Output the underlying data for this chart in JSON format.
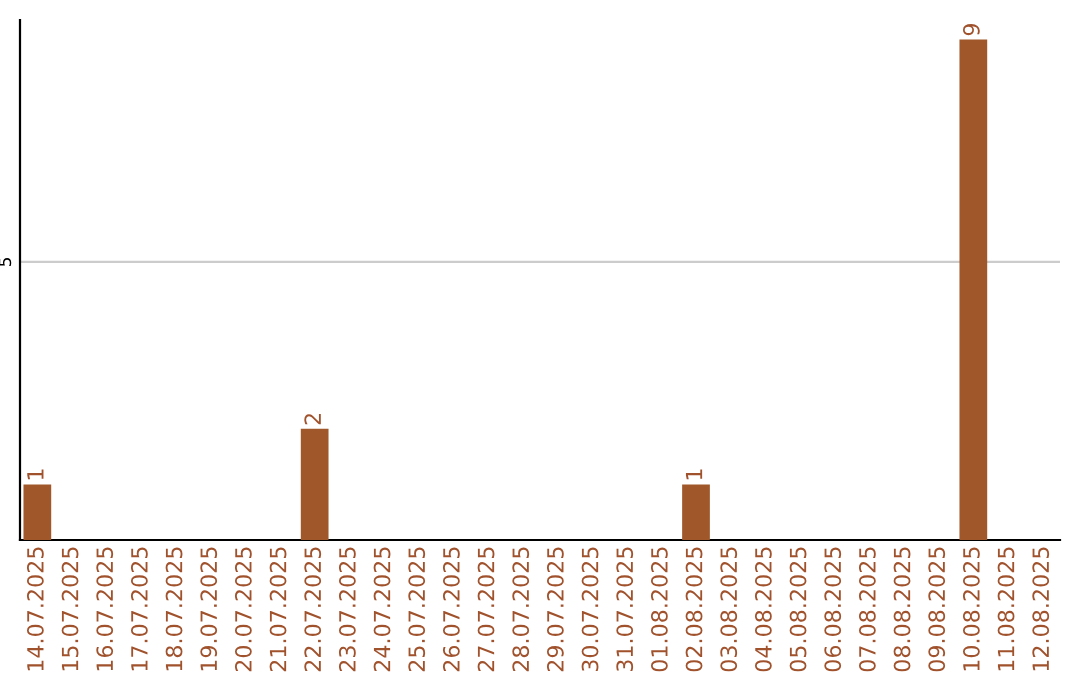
{
  "chart_data": {
    "type": "bar",
    "categories": [
      "14.07.2025",
      "15.07.2025",
      "16.07.2025",
      "17.07.2025",
      "18.07.2025",
      "19.07.2025",
      "20.07.2025",
      "21.07.2025",
      "22.07.2025",
      "23.07.2025",
      "24.07.2025",
      "25.07.2025",
      "26.07.2025",
      "27.07.2025",
      "28.07.2025",
      "29.07.2025",
      "30.07.2025",
      "31.07.2025",
      "01.08.2025",
      "02.08.2025",
      "03.08.2025",
      "04.08.2025",
      "05.08.2025",
      "06.08.2025",
      "07.08.2025",
      "08.08.2025",
      "09.08.2025",
      "10.08.2025",
      "11.08.2025",
      "12.08.2025"
    ],
    "values": [
      1,
      0,
      0,
      0,
      0,
      0,
      0,
      0,
      2,
      0,
      0,
      0,
      0,
      0,
      0,
      0,
      0,
      0,
      0,
      1,
      0,
      0,
      0,
      0,
      0,
      0,
      0,
      9,
      0,
      0
    ],
    "value_labels": [
      "1",
      null,
      null,
      null,
      null,
      null,
      null,
      null,
      "2",
      null,
      null,
      null,
      null,
      null,
      null,
      null,
      null,
      null,
      null,
      "1",
      null,
      null,
      null,
      null,
      null,
      null,
      null,
      "9",
      null,
      null
    ],
    "color": "#a0582a",
    "ylim": [
      0,
      9.35
    ],
    "yticks": [
      5
    ],
    "grid": "y"
  }
}
